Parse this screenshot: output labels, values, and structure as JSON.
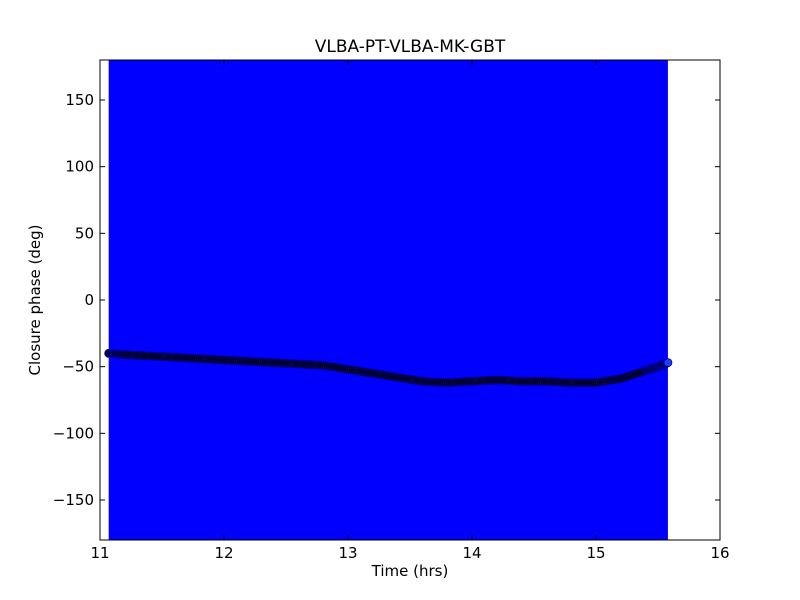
{
  "chart_data": {
    "type": "scatter",
    "title": "VLBA-PT-VLBA-MK-GBT",
    "xlabel": "Time (hrs)",
    "ylabel": "Closure phase (deg)",
    "xlim": [
      11,
      16
    ],
    "ylim": [
      -180,
      180
    ],
    "x_ticks": [
      11,
      12,
      13,
      14,
      15,
      16
    ],
    "y_ticks": [
      -150,
      -100,
      -50,
      0,
      50,
      100,
      150
    ],
    "grid": false,
    "shaded_band": {
      "x_range": [
        11.07,
        15.58
      ],
      "y_range": [
        -180,
        180
      ],
      "color": "#0000ff"
    },
    "series": [
      {
        "color": "#000000",
        "edge_color": "#00008b",
        "x": [
          11.07,
          11.2,
          11.4,
          11.6,
          11.8,
          12.0,
          12.2,
          12.4,
          12.6,
          12.8,
          13.0,
          13.2,
          13.4,
          13.6,
          13.8,
          14.0,
          14.2,
          14.4,
          14.6,
          14.8,
          15.0,
          15.2,
          15.4,
          15.5,
          15.58
        ],
        "y": [
          -40,
          -41,
          -42,
          -43,
          -44,
          -45,
          -46,
          -47,
          -48,
          -49,
          -52,
          -55,
          -58,
          -61,
          -62,
          -61,
          -60,
          -61,
          -61,
          -62,
          -62,
          -59,
          -53,
          -50,
          -47
        ]
      }
    ]
  }
}
